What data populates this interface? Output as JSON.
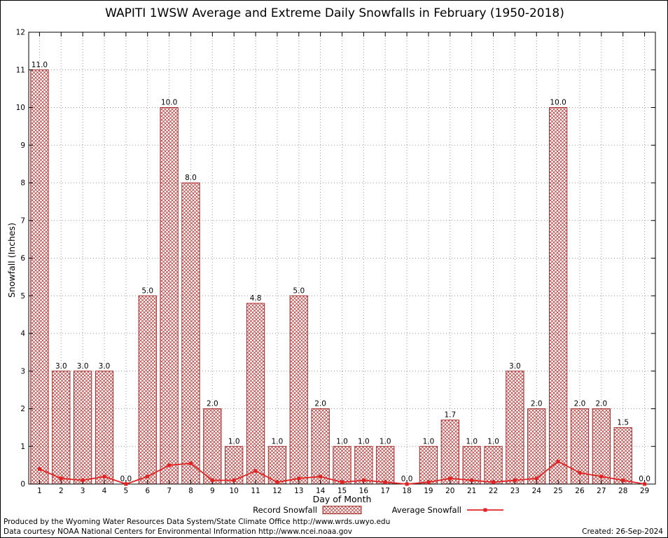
{
  "chart_data": {
    "type": "bar",
    "title": "WAPITI 1WSW Average and Extreme Daily Snowfalls in February (1950-2018)",
    "xlabel": "Day of Month",
    "ylabel": "Snowfall (Inches)",
    "ylim": [
      0,
      12
    ],
    "yticks": [
      0,
      1,
      2,
      3,
      4,
      5,
      6,
      7,
      8,
      9,
      10,
      11,
      12
    ],
    "grid": true,
    "legend_position": "bottom",
    "categories": [
      1,
      2,
      3,
      4,
      5,
      6,
      7,
      8,
      9,
      10,
      11,
      12,
      13,
      14,
      15,
      16,
      17,
      18,
      19,
      20,
      21,
      22,
      23,
      24,
      25,
      26,
      27,
      28,
      29
    ],
    "series": [
      {
        "name": "Record Snowfall",
        "type": "bar",
        "values": [
          11.0,
          3.0,
          3.0,
          3.0,
          0.0,
          5.0,
          10.0,
          8.0,
          2.0,
          1.0,
          4.8,
          1.0,
          5.0,
          2.0,
          1.0,
          1.0,
          1.0,
          0.0,
          1.0,
          1.7,
          1.0,
          1.0,
          3.0,
          2.0,
          10.0,
          2.0,
          2.0,
          1.5,
          0.0
        ]
      },
      {
        "name": "Average Snowfall",
        "type": "line",
        "values": [
          0.4,
          0.15,
          0.1,
          0.2,
          0.0,
          0.2,
          0.5,
          0.55,
          0.1,
          0.1,
          0.35,
          0.05,
          0.15,
          0.2,
          0.05,
          0.1,
          0.05,
          0.0,
          0.05,
          0.15,
          0.1,
          0.05,
          0.1,
          0.15,
          0.6,
          0.3,
          0.2,
          0.1,
          0.0
        ]
      }
    ],
    "colors": {
      "bar_edge": "#a52a2a",
      "bar_hatch": "#b54040",
      "line": "#e02424",
      "grid": "#999999",
      "axis": "#000000"
    }
  },
  "footer": {
    "line1": "Produced by the Wyoming Water Resources Data System/State Climate Office http://www.wrds.uwyo.edu",
    "line2": "Data courtesy NOAA National Centers for Environmental Information http://www.ncei.noaa.gov",
    "created": "Created: 26-Sep-2024"
  }
}
